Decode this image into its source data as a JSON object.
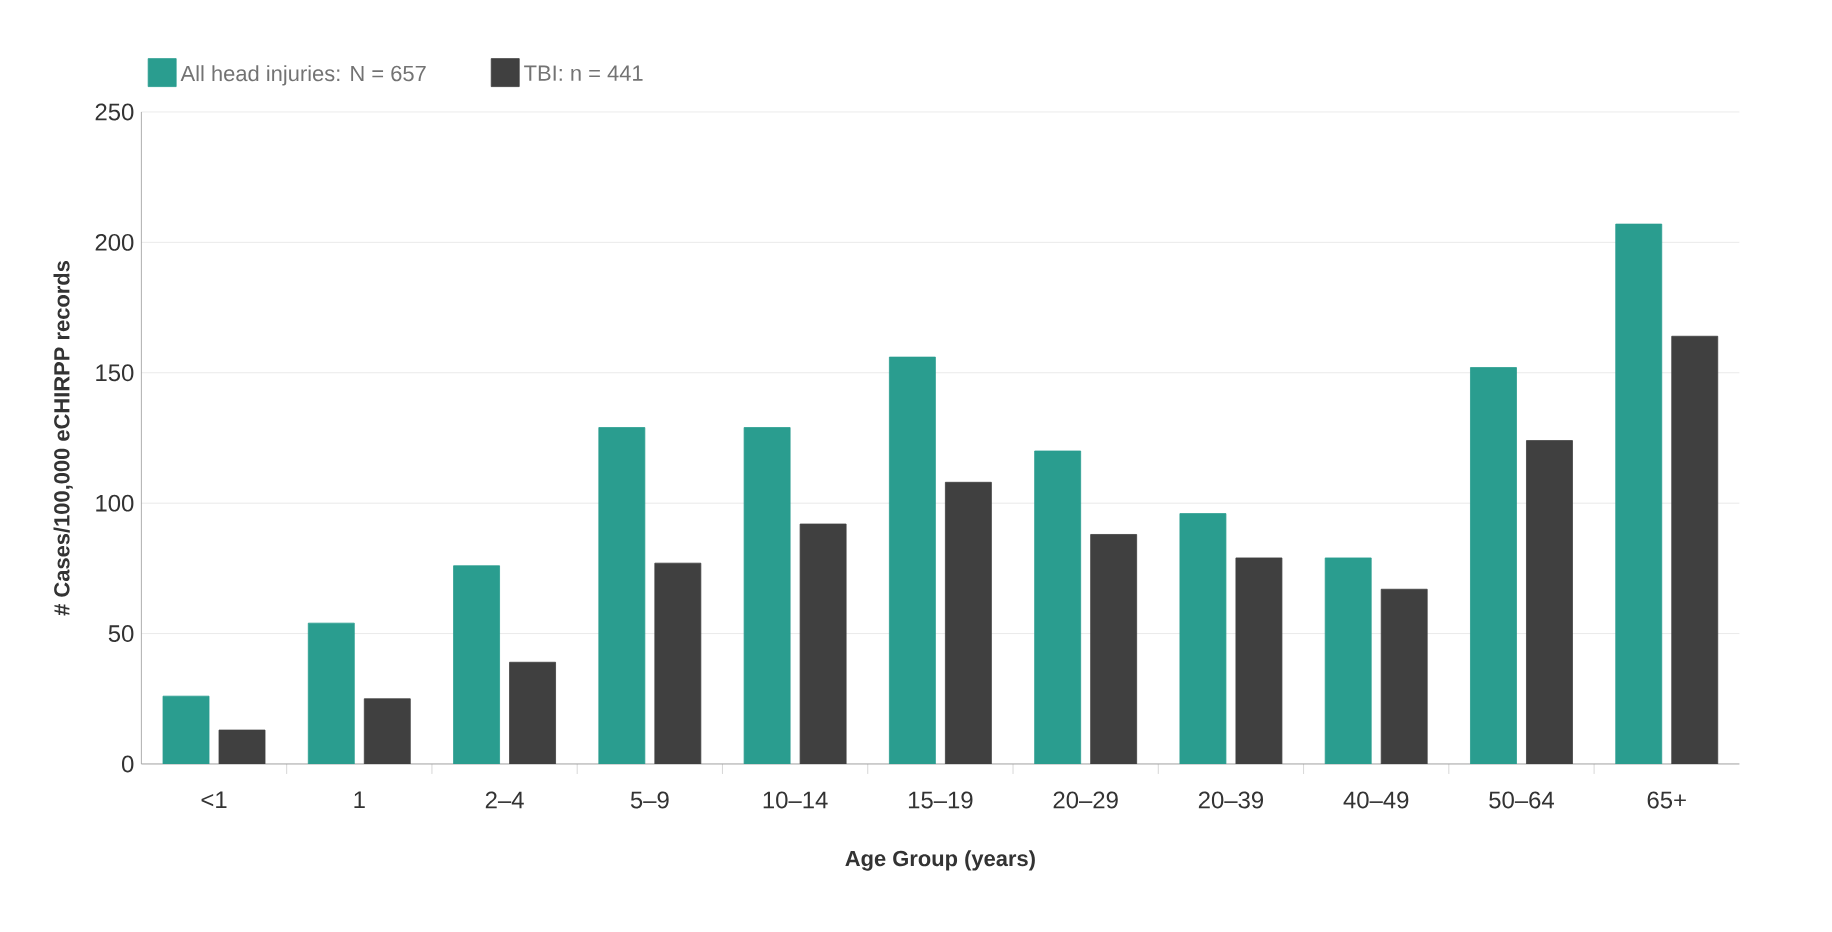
{
  "chart_data": {
    "type": "bar",
    "xlabel": "Age Group (years)",
    "ylabel": "# Cases/100,000 eCHIRPP records",
    "categories": [
      "<1",
      "1",
      "2–4",
      "5–9",
      "10–14",
      "15–19",
      "20–29",
      "20–39",
      "40–49",
      "50–64",
      "65+"
    ],
    "series": [
      {
        "name": "All head injuries: N = 657",
        "color": "#2a9d8f",
        "values": [
          26,
          54,
          76,
          129,
          129,
          156,
          120,
          96,
          79,
          152,
          207
        ]
      },
      {
        "name": "TBI: n = 441",
        "color": "#404040",
        "values": [
          13,
          25,
          39,
          77,
          92,
          108,
          88,
          79,
          67,
          124,
          164
        ]
      }
    ],
    "ylim": [
      0,
      250
    ],
    "yticks": [
      0,
      50,
      100,
      150,
      200,
      250
    ],
    "grid": "y",
    "legend": "top"
  }
}
